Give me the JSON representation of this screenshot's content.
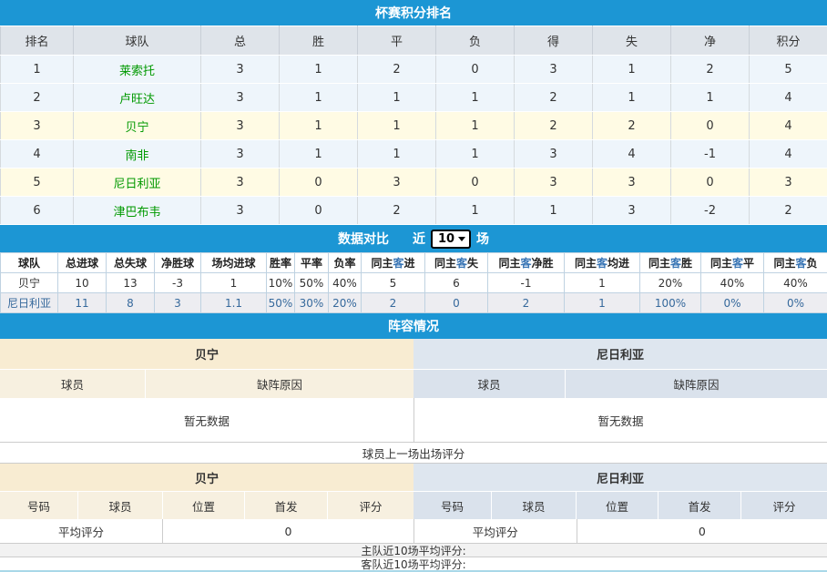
{
  "colors": {
    "accent_blue": "#1c96d4",
    "highlight_yellow": "#fffbe4",
    "stripe_blue": "#eef5fb",
    "team_link_green": "#009900",
    "away_text_blue": "#36699c",
    "home_tone_cream": "#f8ecd2",
    "away_tone_blue": "#dee6ef"
  },
  "standings": {
    "title": "杯赛积分排名",
    "headers": [
      "排名",
      "球队",
      "总",
      "胜",
      "平",
      "负",
      "得",
      "失",
      "净",
      "积分"
    ],
    "rows": [
      {
        "rank": "1",
        "team": "莱索托",
        "vals": [
          "3",
          "1",
          "2",
          "0",
          "3",
          "1",
          "2",
          "5"
        ]
      },
      {
        "rank": "2",
        "team": "卢旺达",
        "vals": [
          "3",
          "1",
          "1",
          "1",
          "2",
          "1",
          "1",
          "4"
        ]
      },
      {
        "rank": "3",
        "team": "贝宁",
        "vals": [
          "3",
          "1",
          "1",
          "1",
          "2",
          "2",
          "0",
          "4"
        ]
      },
      {
        "rank": "4",
        "team": "南非",
        "vals": [
          "3",
          "1",
          "1",
          "1",
          "3",
          "4",
          "-1",
          "4"
        ]
      },
      {
        "rank": "5",
        "team": "尼日利亚",
        "vals": [
          "3",
          "0",
          "3",
          "0",
          "3",
          "3",
          "0",
          "3"
        ]
      },
      {
        "rank": "6",
        "team": "津巴布韦",
        "vals": [
          "3",
          "0",
          "2",
          "1",
          "1",
          "3",
          "-2",
          "2"
        ]
      }
    ]
  },
  "comparison": {
    "title": "数据对比",
    "near_label": "近",
    "matches_value": "10",
    "matches_suffix": "场",
    "headers": [
      "球队",
      "总进球",
      "总失球",
      "净胜球",
      "场均进球",
      "胜率",
      "平率",
      "负率",
      "同主客进",
      "同主客失",
      "同主客净胜",
      "同主客均进",
      "同主客胜",
      "同主客平",
      "同主客负"
    ],
    "rows": [
      {
        "team": "贝宁",
        "cells": [
          "10",
          "13",
          "-3",
          "1",
          "10%",
          "50%",
          "40%",
          "5",
          "6",
          "-1",
          "1",
          "20%",
          "40%",
          "40%"
        ]
      },
      {
        "team": "尼日利亚",
        "cells": [
          "11",
          "8",
          "3",
          "1.1",
          "50%",
          "30%",
          "20%",
          "2",
          "0",
          "2",
          "1",
          "100%",
          "0%",
          "0%"
        ]
      }
    ]
  },
  "lineup": {
    "title": "阵容情况",
    "home": {
      "team": "贝宁",
      "headers": [
        "球员",
        "缺阵原因"
      ],
      "empty": "暂无数据"
    },
    "away": {
      "team": "尼日利亚",
      "headers": [
        "球员",
        "缺阵原因"
      ],
      "empty": "暂无数据"
    }
  },
  "ratings": {
    "caption": "球员上一场出场评分",
    "headers": [
      "号码",
      "球员",
      "位置",
      "首发",
      "评分"
    ],
    "home": {
      "team": "贝宁",
      "avg_label": "平均评分",
      "avg_value": "0"
    },
    "away": {
      "team": "尼日利亚",
      "avg_label": "平均评分",
      "avg_value": "0"
    },
    "home_recent_label": "主队近10场平均评分:",
    "away_recent_label": "客队近10场平均评分:"
  }
}
